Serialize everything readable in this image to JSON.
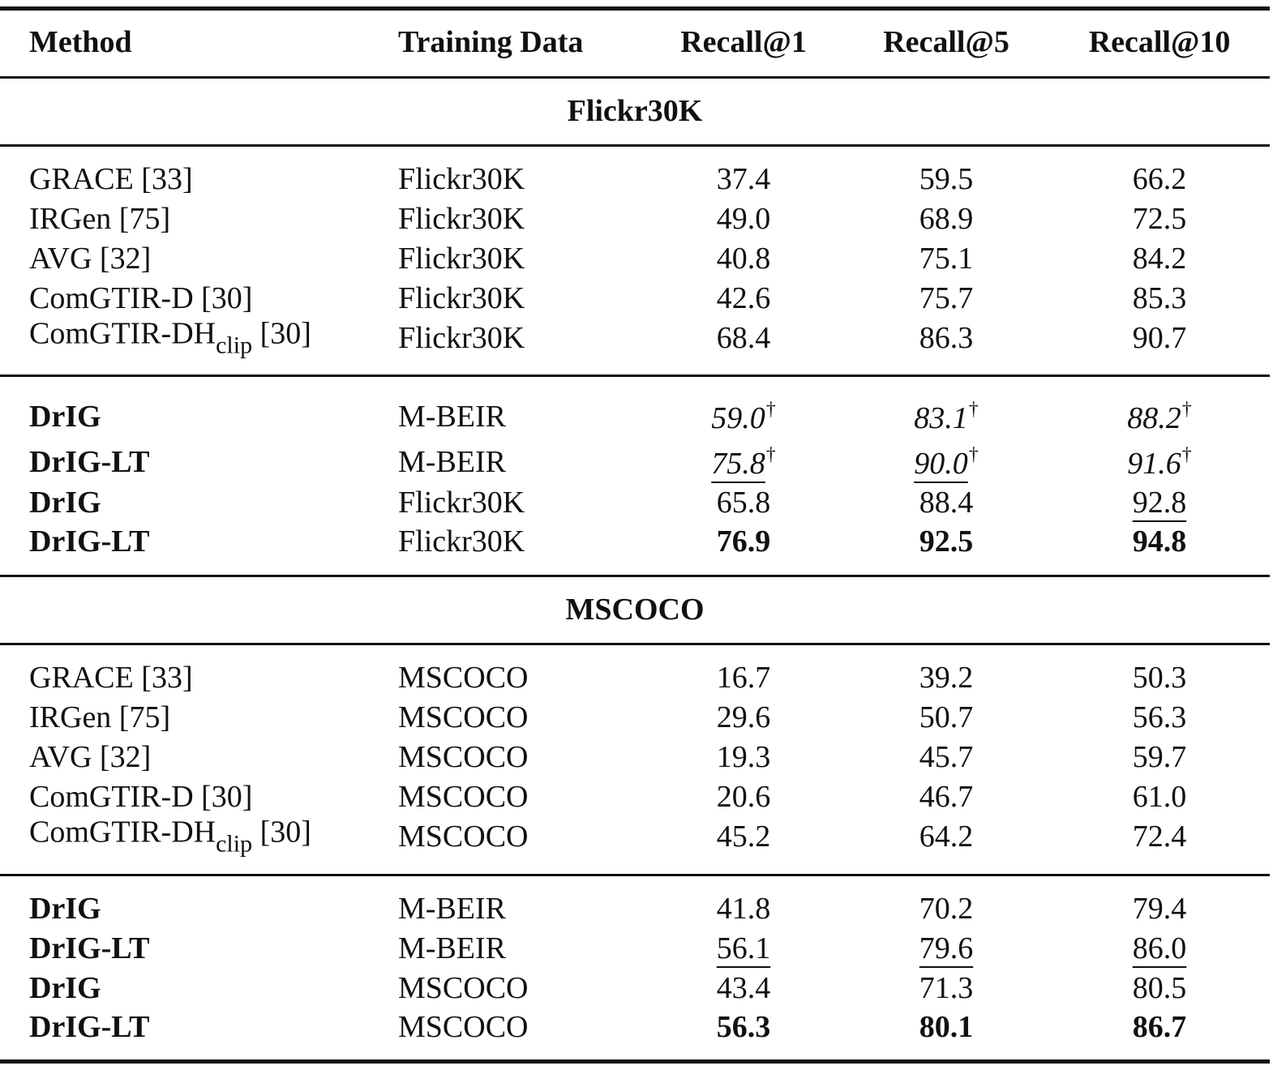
{
  "header": {
    "method": "Method",
    "training_data": "Training Data",
    "recall1": "Recall@1",
    "recall5": "Recall@5",
    "recall10": "Recall@10"
  },
  "sections": [
    {
      "title": "Flickr30K",
      "baselines": [
        {
          "method": "GRACE [33]",
          "data": "Flickr30K",
          "r1": "37.4",
          "r5": "59.5",
          "r10": "66.2"
        },
        {
          "method": "IRGen [75]",
          "data": "Flickr30K",
          "r1": "49.0",
          "r5": "68.9",
          "r10": "72.5"
        },
        {
          "method": "AVG [32]",
          "data": "Flickr30K",
          "r1": "40.8",
          "r5": "75.1",
          "r10": "84.2"
        },
        {
          "method": "ComGTIR-D [30]",
          "data": "Flickr30K",
          "r1": "42.6",
          "r5": "75.7",
          "r10": "85.3"
        },
        {
          "method_main": "ComGTIR-DH",
          "method_sub": "clip",
          "method_ref": " [30]",
          "data": "Flickr30K",
          "r1": "68.4",
          "r5": "86.3",
          "r10": "90.7"
        }
      ],
      "ours": [
        {
          "method": "DrIG",
          "data": "M-BEIR",
          "r1": "59.0",
          "r5": "83.1",
          "r10": "88.2",
          "mark": "†"
        },
        {
          "method": "DrIG-LT",
          "data": "M-BEIR",
          "r1": "75.8",
          "r5": "90.0",
          "r10": "91.6",
          "mark": "†"
        },
        {
          "method": "DrIG",
          "data": "Flickr30K",
          "r1": "65.8",
          "r5": "88.4",
          "r10": "92.8"
        },
        {
          "method": "DrIG-LT",
          "data": "Flickr30K",
          "r1": "76.9",
          "r5": "92.5",
          "r10": "94.8"
        }
      ]
    },
    {
      "title": "MSCOCO",
      "baselines": [
        {
          "method": "GRACE [33]",
          "data": "MSCOCO",
          "r1": "16.7",
          "r5": "39.2",
          "r10": "50.3"
        },
        {
          "method": "IRGen [75]",
          "data": "MSCOCO",
          "r1": "29.6",
          "r5": "50.7",
          "r10": "56.3"
        },
        {
          "method": "AVG [32]",
          "data": "MSCOCO",
          "r1": "19.3",
          "r5": "45.7",
          "r10": "59.7"
        },
        {
          "method": "ComGTIR-D [30]",
          "data": "MSCOCO",
          "r1": "20.6",
          "r5": "46.7",
          "r10": "61.0"
        },
        {
          "method_main": "ComGTIR-DH",
          "method_sub": "clip",
          "method_ref": " [30]",
          "data": "MSCOCO",
          "r1": "45.2",
          "r5": "64.2",
          "r10": "72.4"
        }
      ],
      "ours": [
        {
          "method": "DrIG",
          "data": "M-BEIR",
          "r1": "41.8",
          "r5": "70.2",
          "r10": "79.4"
        },
        {
          "method": "DrIG-LT",
          "data": "M-BEIR",
          "r1": "56.1",
          "r5": "79.6",
          "r10": "86.0"
        },
        {
          "method": "DrIG",
          "data": "MSCOCO",
          "r1": "43.4",
          "r5": "71.3",
          "r10": "80.5"
        },
        {
          "method": "DrIG-LT",
          "data": "MSCOCO",
          "r1": "56.3",
          "r5": "80.1",
          "r10": "86.7"
        }
      ]
    }
  ]
}
